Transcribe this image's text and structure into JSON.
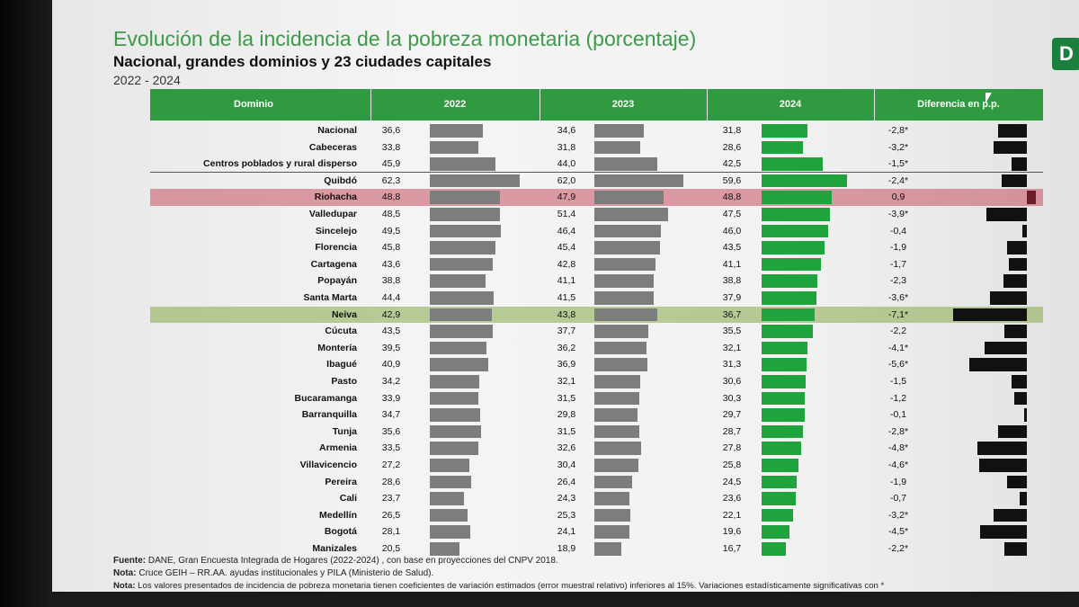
{
  "header": {
    "title": "Evolución de la incidencia de la pobreza monetaria (porcentaje)",
    "subtitle": "Nacional, grandes dominios y 23 ciudades capitales",
    "period": "2022 - 2024"
  },
  "logo": {
    "letter": "D"
  },
  "chart_data": {
    "type": "table",
    "columns": [
      "Dominio",
      "2022",
      "2023",
      "2024",
      "Diferencia en p.p."
    ],
    "rows": [
      {
        "dominio": "Nacional",
        "v2022": "36,6",
        "v2023": "34,6",
        "v2024": "31,8",
        "dif": "-2,8*",
        "n2022": 36.6,
        "n2023": 34.6,
        "n2024": 31.8,
        "ndif": -2.8,
        "hl": ""
      },
      {
        "dominio": "Cabeceras",
        "v2022": "33,8",
        "v2023": "31,8",
        "v2024": "28,6",
        "dif": "-3,2*",
        "n2022": 33.8,
        "n2023": 31.8,
        "n2024": 28.6,
        "ndif": -3.2,
        "hl": ""
      },
      {
        "dominio": "Centros poblados y rural disperso",
        "v2022": "45,9",
        "v2023": "44,0",
        "v2024": "42,5",
        "dif": "-1,5*",
        "n2022": 45.9,
        "n2023": 44.0,
        "n2024": 42.5,
        "ndif": -1.5,
        "hl": ""
      },
      {
        "dominio": "Quibdó",
        "v2022": "62,3",
        "v2023": "62,0",
        "v2024": "59,6",
        "dif": "-2,4*",
        "n2022": 62.3,
        "n2023": 62.0,
        "n2024": 59.6,
        "ndif": -2.4,
        "hl": ""
      },
      {
        "dominio": "Riohacha",
        "v2022": "48,8",
        "v2023": "47,9",
        "v2024": "48,8",
        "dif": "0,9",
        "n2022": 48.8,
        "n2023": 47.9,
        "n2024": 48.8,
        "ndif": 0.9,
        "hl": "red"
      },
      {
        "dominio": "Valledupar",
        "v2022": "48,5",
        "v2023": "51,4",
        "v2024": "47,5",
        "dif": "-3,9*",
        "n2022": 48.5,
        "n2023": 51.4,
        "n2024": 47.5,
        "ndif": -3.9,
        "hl": ""
      },
      {
        "dominio": "Sincelejo",
        "v2022": "49,5",
        "v2023": "46,4",
        "v2024": "46,0",
        "dif": "-0,4",
        "n2022": 49.5,
        "n2023": 46.4,
        "n2024": 46.0,
        "ndif": -0.4,
        "hl": ""
      },
      {
        "dominio": "Florencia",
        "v2022": "45,8",
        "v2023": "45,4",
        "v2024": "43,5",
        "dif": "-1,9",
        "n2022": 45.8,
        "n2023": 45.4,
        "n2024": 43.5,
        "ndif": -1.9,
        "hl": ""
      },
      {
        "dominio": "Cartagena",
        "v2022": "43,6",
        "v2023": "42,8",
        "v2024": "41,1",
        "dif": "-1,7",
        "n2022": 43.6,
        "n2023": 42.8,
        "n2024": 41.1,
        "ndif": -1.7,
        "hl": ""
      },
      {
        "dominio": "Popayán",
        "v2022": "38,8",
        "v2023": "41,1",
        "v2024": "38,8",
        "dif": "-2,3",
        "n2022": 38.8,
        "n2023": 41.1,
        "n2024": 38.8,
        "ndif": -2.3,
        "hl": ""
      },
      {
        "dominio": "Santa Marta",
        "v2022": "44,4",
        "v2023": "41,5",
        "v2024": "37,9",
        "dif": "-3,6*",
        "n2022": 44.4,
        "n2023": 41.5,
        "n2024": 37.9,
        "ndif": -3.6,
        "hl": ""
      },
      {
        "dominio": "Neiva",
        "v2022": "42,9",
        "v2023": "43,8",
        "v2024": "36,7",
        "dif": "-7,1*",
        "n2022": 42.9,
        "n2023": 43.8,
        "n2024": 36.7,
        "ndif": -7.1,
        "hl": "olive"
      },
      {
        "dominio": "Cúcuta",
        "v2022": "43,5",
        "v2023": "37,7",
        "v2024": "35,5",
        "dif": "-2,2",
        "n2022": 43.5,
        "n2023": 37.7,
        "n2024": 35.5,
        "ndif": -2.2,
        "hl": ""
      },
      {
        "dominio": "Montería",
        "v2022": "39,5",
        "v2023": "36,2",
        "v2024": "32,1",
        "dif": "-4,1*",
        "n2022": 39.5,
        "n2023": 36.2,
        "n2024": 32.1,
        "ndif": -4.1,
        "hl": ""
      },
      {
        "dominio": "Ibagué",
        "v2022": "40,9",
        "v2023": "36,9",
        "v2024": "31,3",
        "dif": "-5,6*",
        "n2022": 40.9,
        "n2023": 36.9,
        "n2024": 31.3,
        "ndif": -5.6,
        "hl": ""
      },
      {
        "dominio": "Pasto",
        "v2022": "34,2",
        "v2023": "32,1",
        "v2024": "30,6",
        "dif": "-1,5",
        "n2022": 34.2,
        "n2023": 32.1,
        "n2024": 30.6,
        "ndif": -1.5,
        "hl": ""
      },
      {
        "dominio": "Bucaramanga",
        "v2022": "33,9",
        "v2023": "31,5",
        "v2024": "30,3",
        "dif": "-1,2",
        "n2022": 33.9,
        "n2023": 31.5,
        "n2024": 30.3,
        "ndif": -1.2,
        "hl": ""
      },
      {
        "dominio": "Barranquilla",
        "v2022": "34,7",
        "v2023": "29,8",
        "v2024": "29,7",
        "dif": "-0,1",
        "n2022": 34.7,
        "n2023": 29.8,
        "n2024": 29.7,
        "ndif": -0.1,
        "hl": ""
      },
      {
        "dominio": "Tunja",
        "v2022": "35,6",
        "v2023": "31,5",
        "v2024": "28,7",
        "dif": "-2,8*",
        "n2022": 35.6,
        "n2023": 31.5,
        "n2024": 28.7,
        "ndif": -2.8,
        "hl": ""
      },
      {
        "dominio": "Armenia",
        "v2022": "33,5",
        "v2023": "32,6",
        "v2024": "27,8",
        "dif": "-4,8*",
        "n2022": 33.5,
        "n2023": 32.6,
        "n2024": 27.8,
        "ndif": -4.8,
        "hl": ""
      },
      {
        "dominio": "Villavicencio",
        "v2022": "27,2",
        "v2023": "30,4",
        "v2024": "25,8",
        "dif": "-4,6*",
        "n2022": 27.2,
        "n2023": 30.4,
        "n2024": 25.8,
        "ndif": -4.6,
        "hl": ""
      },
      {
        "dominio": "Pereira",
        "v2022": "28,6",
        "v2023": "26,4",
        "v2024": "24,5",
        "dif": "-1,9",
        "n2022": 28.6,
        "n2023": 26.4,
        "n2024": 24.5,
        "ndif": -1.9,
        "hl": ""
      },
      {
        "dominio": "Cali",
        "v2022": "23,7",
        "v2023": "24,3",
        "v2024": "23,6",
        "dif": "-0,7",
        "n2022": 23.7,
        "n2023": 24.3,
        "n2024": 23.6,
        "ndif": -0.7,
        "hl": ""
      },
      {
        "dominio": "Medellín",
        "v2022": "26,5",
        "v2023": "25,3",
        "v2024": "22,1",
        "dif": "-3,2*",
        "n2022": 26.5,
        "n2023": 25.3,
        "n2024": 22.1,
        "ndif": -3.2,
        "hl": ""
      },
      {
        "dominio": "Bogotá",
        "v2022": "28,1",
        "v2023": "24,1",
        "v2024": "19,6",
        "dif": "-4,5*",
        "n2022": 28.1,
        "n2023": 24.1,
        "n2024": 19.6,
        "ndif": -4.5,
        "hl": ""
      },
      {
        "dominio": "Manizales",
        "v2022": "20,5",
        "v2023": "18,9",
        "v2024": "16,7",
        "dif": "-2,2*",
        "n2022": 20.5,
        "n2023": 18.9,
        "n2024": 16.7,
        "ndif": -2.2,
        "hl": ""
      }
    ],
    "colors": {
      "bar2022": "#7d7d7d",
      "bar2023": "#7d7d7d",
      "bar2024": "#1fa33c",
      "diff": "#111111",
      "header": "#2f9a3f"
    }
  },
  "footnotes": {
    "fuente_label": "Fuente:",
    "fuente_text": " DANE, Gran Encuesta Integrada de Hogares (2022-2024) , con base en proyecciones del CNPV 2018.",
    "nota1_label": "Nota:",
    "nota1_text": " Cruce GEIH – RR.AA. ayudas institucionales y PILA (Ministerio de Salud).",
    "nota2_label": "Nota:",
    "nota2_text": " Los valores presentados de incidencia de pobreza monetaria tienen coeficientes de variación estimados (error muestral relativo) inferiores al 15%. Variaciones estadísticamente significativas con *"
  }
}
